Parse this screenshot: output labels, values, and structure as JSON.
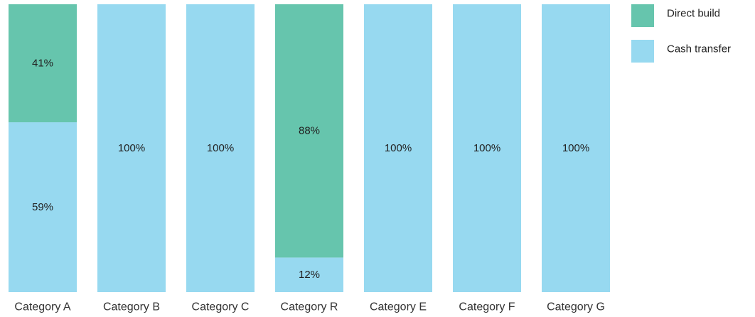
{
  "chart_data": {
    "type": "bar",
    "stacked": true,
    "normalized": true,
    "title": "",
    "xlabel": "",
    "ylabel": "",
    "ylim": [
      0,
      100
    ],
    "grid": false,
    "legend_position": "top-right",
    "categories": [
      "Category A",
      "Category B",
      "Category C",
      "Category R",
      "Category E",
      "Category F",
      "Category G"
    ],
    "series": [
      {
        "name": "Cash transfer",
        "color": "#97d9f0",
        "values": [
          59,
          100,
          100,
          12,
          100,
          100,
          100
        ],
        "labels": [
          "59%",
          "100%",
          "100%",
          "12%",
          "100%",
          "100%",
          "100%"
        ]
      },
      {
        "name": "Direct build",
        "color": "#66c5ad",
        "values": [
          41,
          0,
          0,
          88,
          0,
          0,
          0
        ],
        "labels": [
          "41%",
          "",
          "",
          "88%",
          "",
          "",
          ""
        ]
      }
    ],
    "legend_order": [
      "Direct build",
      "Cash transfer"
    ]
  }
}
